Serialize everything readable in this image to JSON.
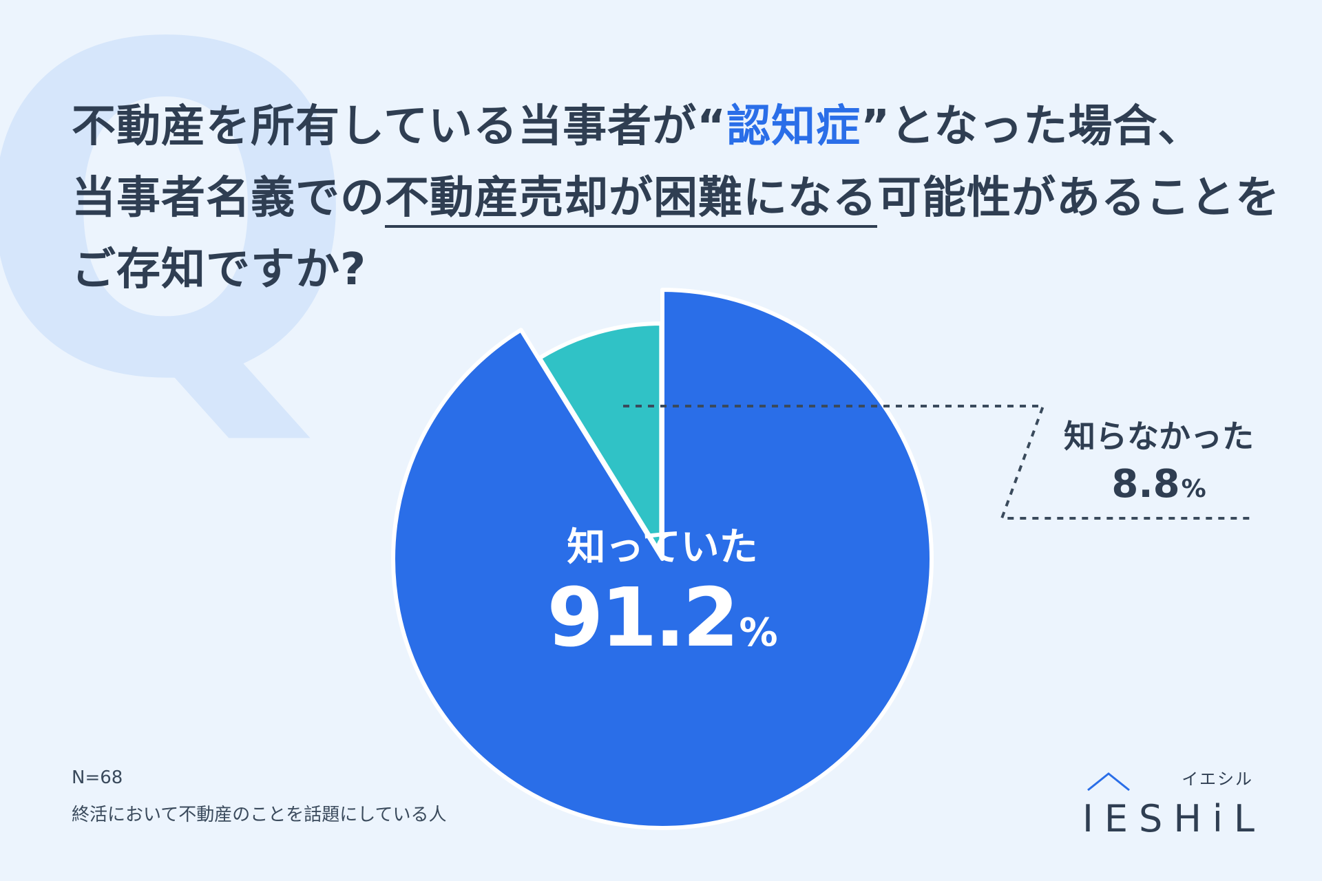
{
  "title": {
    "line1_a": "不動産を所有している当事者が“",
    "line1_highlight": "認知症",
    "line1_b": "”となった場合、",
    "line2_a": "当事者名義での",
    "line2_underline": "不動産売却が困難になる",
    "line2_b": "可能性があることを",
    "line3": "ご存知ですか?"
  },
  "background_letter": "Q",
  "chart_data": {
    "type": "pie",
    "slices": [
      {
        "label": "知っていた",
        "value": 91.2,
        "value_label": "91.2",
        "color": "#2a6ee8"
      },
      {
        "label": "知らなかった",
        "value": 8.8,
        "value_label": "8.8",
        "color": "#30c2c6"
      }
    ],
    "unit": "%"
  },
  "notes": {
    "sample": "N=68",
    "respondents": "終活において不動産のことを話題にしている人"
  },
  "logo": {
    "kana": "イエシル",
    "wordmark": "IESHiL",
    "color": "#2a6ee8"
  },
  "colors": {
    "background": "#ecf4fd",
    "accent": "#2a6ee8",
    "teal": "#30c2c6",
    "text": "#2f3e52",
    "watermark": "#d6e6fb"
  }
}
